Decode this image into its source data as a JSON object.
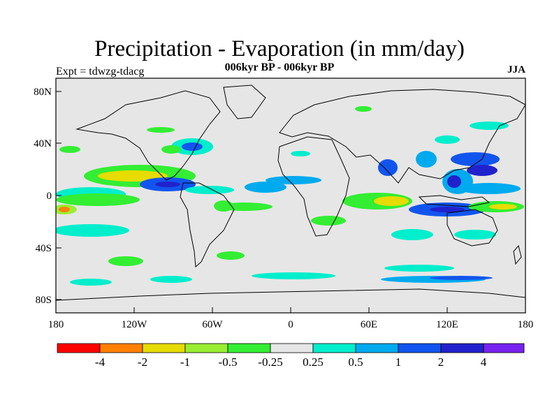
{
  "title": "Precipitation - Evaporation (in mm/day)",
  "subtitle": "006kyr BP - 006kyr BP",
  "expt_label": "Expt = tdwzg-tdacg",
  "season": "JJA",
  "map": {
    "background_color": "#e6e6e6",
    "lat_ticks": [
      "80N",
      "40N",
      "0",
      "40S",
      "80S"
    ],
    "lon_ticks": [
      "180",
      "120W",
      "60W",
      "0",
      "60E",
      "120E",
      "180"
    ]
  },
  "colorbar": {
    "colors": [
      "#ff0000",
      "#ff8000",
      "#e6dc00",
      "#99ee33",
      "#33ee33",
      "#e6e6e6",
      "#00eecc",
      "#00aaee",
      "#1155ee",
      "#2222cc",
      "#7722ee"
    ],
    "labels": [
      "-4",
      "-2",
      "-1",
      "-0.5",
      "-0.25",
      "0.25",
      "0.5",
      "1",
      "2",
      "4"
    ]
  }
}
